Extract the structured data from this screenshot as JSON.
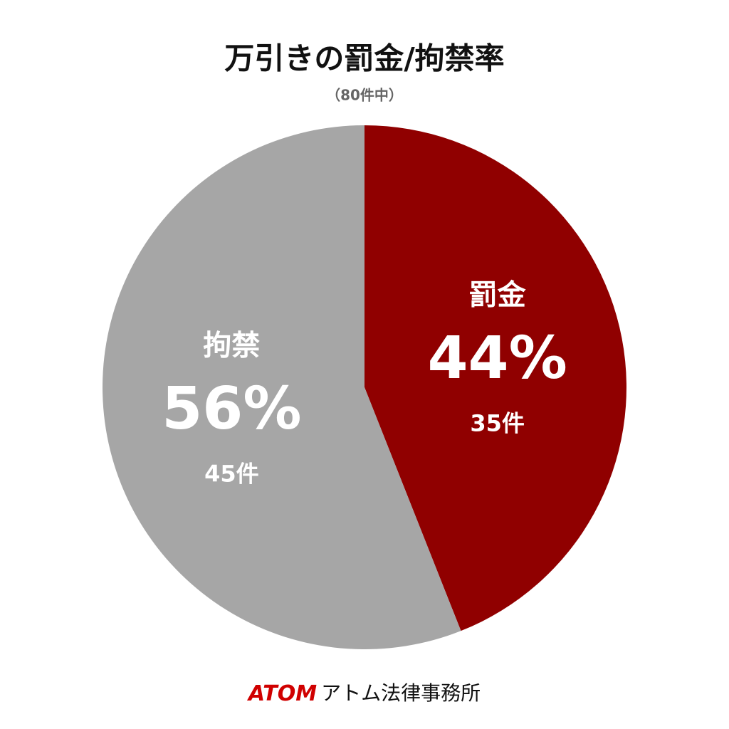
{
  "chart_data": {
    "type": "pie",
    "title": "万引きの罰金/拘禁率",
    "subtitle": "（80件中）",
    "categories": [
      "罰金",
      "拘禁"
    ],
    "values": [
      44,
      56
    ],
    "value_labels": [
      "44%",
      "56%"
    ],
    "count_labels": [
      "35件",
      "45件"
    ],
    "colors": [
      "#900000",
      "#a6a6a6"
    ]
  },
  "footer": {
    "brand": "ATOM",
    "name": "アトム法律事務所"
  }
}
